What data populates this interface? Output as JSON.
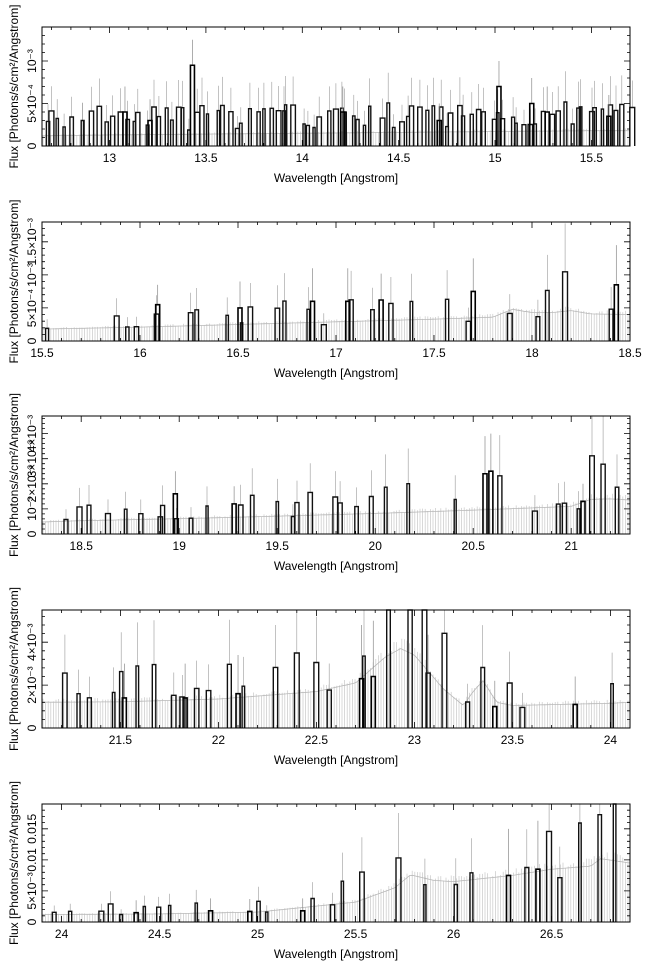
{
  "figure": {
    "xlabel": "Wavelength [Angstrom]",
    "ylabel": "Flux [Photons/s/cm²/Angstrom]"
  },
  "chart_data": [
    {
      "type": "line",
      "title": "",
      "xlabel": "Wavelength [Angstrom]",
      "ylabel": "Flux [Photons/s/cm²/Angstrom]",
      "xlim": [
        12.65,
        15.7
      ],
      "ylim": [
        0,
        0.0014
      ],
      "x_ticks": [
        13,
        13.5,
        14,
        14.5,
        15,
        15.5
      ],
      "x_tick_labels": [
        "13",
        "13.5",
        "14",
        "14.5",
        "15",
        "15.5"
      ],
      "y_ticks": [
        0,
        0.0005,
        0.001
      ],
      "y_tick_labels": [
        "0",
        "5×10⁻⁴",
        "10⁻³"
      ],
      "spectrum": {
        "x": [
          12.65,
          13.0,
          13.5,
          14.0,
          14.5,
          15.0,
          15.5,
          15.7
        ],
        "y": [
          0.00012,
          0.00013,
          0.00014,
          0.00015,
          0.00016,
          0.00017,
          0.00018,
          0.00018
        ]
      },
      "features": [
        {
          "x": 13.07,
          "y": 0.0004,
          "err": 0.0003
        },
        {
          "x": 13.2,
          "y": 0.0003,
          "err": 0.00025
        },
        {
          "x": 13.42,
          "y": 0.00095,
          "err": 0.0003
        },
        {
          "x": 14.2,
          "y": 0.0004,
          "err": 0.0003
        },
        {
          "x": 14.7,
          "y": 0.0003,
          "err": 0.0002
        },
        {
          "x": 15.01,
          "y": 0.0007,
          "err": 0.0003
        },
        {
          "x": 15.18,
          "y": 0.0005,
          "err": 0.0003
        },
        {
          "x": 15.26,
          "y": 0.0004,
          "err": 0.0003
        },
        {
          "x": 15.58,
          "y": 0.00035,
          "err": 0.00025
        }
      ]
    },
    {
      "type": "line",
      "title": "",
      "xlabel": "Wavelength [Angstrom]",
      "ylabel": "Flux [Photons/s/cm²/Angstrom]",
      "xlim": [
        15.5,
        18.5
      ],
      "ylim": [
        0,
        0.0018
      ],
      "x_ticks": [
        15.5,
        16,
        16.5,
        17,
        17.5,
        18,
        18.5
      ],
      "x_tick_labels": [
        "15.5",
        "16",
        "16.5",
        "17",
        "17.5",
        "18",
        "18.5"
      ],
      "y_ticks": [
        0,
        0.0005,
        0.001,
        0.0015
      ],
      "y_tick_labels": [
        "0",
        "5×10⁻⁴",
        "10⁻³",
        "1.5×10⁻³"
      ],
      "spectrum": {
        "x": [
          15.5,
          16.0,
          16.5,
          17.0,
          17.5,
          17.8,
          17.9,
          18.0,
          18.1,
          18.2,
          18.3,
          18.5
        ],
        "y": [
          0.00018,
          0.00021,
          0.00025,
          0.00029,
          0.00033,
          0.00036,
          0.00048,
          0.00043,
          0.00043,
          0.00046,
          0.00041,
          0.0004
        ]
      },
      "features": [
        {
          "x": 16.08,
          "y": 0.00055,
          "err": 0.0003
        },
        {
          "x": 16.5,
          "y": 0.0005,
          "err": 0.0004
        },
        {
          "x": 16.87,
          "y": 0.0006,
          "err": 0.0005
        },
        {
          "x": 17.05,
          "y": 0.0006,
          "err": 0.0005
        },
        {
          "x": 17.22,
          "y": 0.00062,
          "err": 0.0004
        },
        {
          "x": 17.69,
          "y": 0.00075,
          "err": 0.0005
        },
        {
          "x": 18.42,
          "y": 0.00085,
          "err": 0.0006
        }
      ]
    },
    {
      "type": "line",
      "title": "",
      "xlabel": "Wavelength [Angstrom]",
      "ylabel": "Flux [Photons/s/cm²/Angstrom]",
      "xlim": [
        18.3,
        21.3
      ],
      "ylim": [
        0,
        0.0047
      ],
      "x_ticks": [
        18.5,
        19,
        19.5,
        20,
        20.5,
        21
      ],
      "x_tick_labels": [
        "18.5",
        "19",
        "19.5",
        "20",
        "20.5",
        "21"
      ],
      "y_ticks": [
        0,
        0.001,
        0.002,
        0.003,
        0.004
      ],
      "y_tick_labels": [
        "0",
        "10⁻³",
        "2×10⁻³",
        "3×10⁻³",
        "4×10⁻³"
      ],
      "spectrum": {
        "x": [
          18.3,
          18.5,
          19.0,
          19.5,
          20.0,
          20.5,
          21.0,
          21.1,
          21.2,
          21.3
        ],
        "y": [
          0.00048,
          0.00053,
          0.00061,
          0.00071,
          0.00082,
          0.00095,
          0.0011,
          0.00138,
          0.0014,
          0.00135
        ]
      },
      "features": [
        {
          "x": 18.97,
          "y": 0.0016,
          "err": 0.0009
        },
        {
          "x": 19.27,
          "y": 0.0012,
          "err": 0.0007
        },
        {
          "x": 20.55,
          "y": 0.0024,
          "err": 0.0015
        },
        {
          "x": 20.58,
          "y": 0.0025,
          "err": 0.0015
        },
        {
          "x": 21.05,
          "y": 0.0013,
          "err": 0.0007
        }
      ]
    },
    {
      "type": "line",
      "title": "",
      "xlabel": "Wavelength [Angstrom]",
      "ylabel": "Flux [Photons/s/cm²/Angstrom]",
      "xlim": [
        21.1,
        24.1
      ],
      "ylim": [
        0,
        0.0055
      ],
      "x_ticks": [
        21.5,
        22,
        22.5,
        23,
        23.5,
        24
      ],
      "x_tick_labels": [
        "21.5",
        "22",
        "22.5",
        "23",
        "23.5",
        "24"
      ],
      "y_ticks": [
        0,
        0.002,
        0.004
      ],
      "y_tick_labels": [
        "0",
        "2×10⁻³",
        "4×10⁻³"
      ],
      "spectrum": {
        "x": [
          21.1,
          21.5,
          22.0,
          22.5,
          22.7,
          22.85,
          22.93,
          23.0,
          23.15,
          23.25,
          23.3,
          23.35,
          23.42,
          23.5,
          24.0,
          24.1
        ],
        "y": [
          0.0012,
          0.00122,
          0.00135,
          0.0017,
          0.0021,
          0.0033,
          0.0037,
          0.0034,
          0.0018,
          0.00105,
          0.0017,
          0.0022,
          0.0012,
          0.00105,
          0.00115,
          0.0012
        ]
      },
      "features": [
        {
          "x": 21.51,
          "y": 0.0014,
          "err": 0.0016
        },
        {
          "x": 21.82,
          "y": 0.0014,
          "err": 0.0016
        },
        {
          "x": 22.09,
          "y": 0.0016,
          "err": 0.0018
        },
        {
          "x": 22.72,
          "y": 0.0023,
          "err": 0.0025
        },
        {
          "x": 22.78,
          "y": 0.0024,
          "err": 0.0026
        },
        {
          "x": 23.4,
          "y": 0.001,
          "err": 0.0012
        },
        {
          "x": 23.81,
          "y": 0.0011,
          "err": 0.0013
        }
      ]
    },
    {
      "type": "line",
      "title": "",
      "xlabel": "Wavelength [Angstrom]",
      "ylabel": "Flux [Photons/s/cm²/Angstrom]",
      "xlim": [
        23.9,
        26.9
      ],
      "ylim": [
        0,
        0.019
      ],
      "x_ticks": [
        24,
        24.5,
        25,
        25.5,
        26,
        26.5
      ],
      "x_tick_labels": [
        "24",
        "24.5",
        "25",
        "25.5",
        "26",
        "26.5"
      ],
      "y_ticks": [
        0,
        0.005,
        0.01,
        0.015
      ],
      "y_tick_labels": [
        "0",
        "5×10⁻³",
        "0.01",
        "0.015"
      ],
      "spectrum": {
        "x": [
          23.9,
          24.5,
          25.0,
          25.5,
          25.7,
          25.78,
          25.9,
          26.0,
          26.3,
          26.5,
          26.7,
          26.75,
          26.9
        ],
        "y": [
          0.0012,
          0.0013,
          0.0016,
          0.0032,
          0.0055,
          0.0076,
          0.0067,
          0.0065,
          0.0075,
          0.0085,
          0.009,
          0.0102,
          0.0095
        ]
      },
      "features": [
        {
          "x": 24.37,
          "y": 0.0015,
          "err": 0.002
        },
        {
          "x": 24.75,
          "y": 0.0018,
          "err": 0.002
        },
        {
          "x": 24.95,
          "y": 0.0017,
          "err": 0.002
        },
        {
          "x": 25.22,
          "y": 0.0018,
          "err": 0.002
        },
        {
          "x": 26.27,
          "y": 0.0075,
          "err": 0.0075
        },
        {
          "x": 26.42,
          "y": 0.0085,
          "err": 0.0078
        }
      ]
    }
  ]
}
